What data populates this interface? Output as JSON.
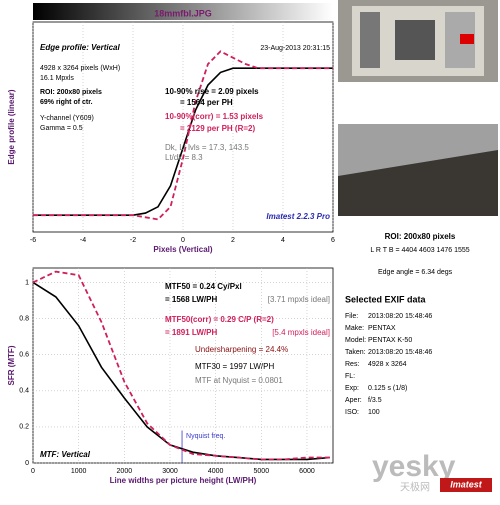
{
  "header": {
    "title": "18mmfbl.JPG"
  },
  "chart_data": [
    {
      "type": "line",
      "title": "Edge profile: Vertical",
      "date": "23-Aug-2013 20:31:15",
      "info": [
        "4928 x 3264 pixels (WxH)",
        "16.1 Mpxls",
        "ROI: 200x80 pixels",
        "69% right of ctr.",
        "Y-channel  (Y609)",
        "Gamma = 0.5"
      ],
      "annotations": [
        "10-90% rise = 2.09 pixels",
        "= 1564 per PH",
        "10-90%(corr) = 1.53 pixels",
        "= 2129 per PH  (R=2)",
        "Dk, Lt lvls = 17.3, 143.5",
        "Lt/dk = 8.3",
        "Imatest 2.2.3 Pro"
      ],
      "xlabel": "Pixels (Vertical)",
      "ylabel": "Edge profile (linear)",
      "x": [
        -6,
        -5.5,
        -5,
        -4.5,
        -4,
        -3.5,
        -3,
        -2.5,
        -2,
        -1.5,
        -1,
        -0.5,
        0,
        0.5,
        1,
        1.5,
        2,
        2.5,
        3,
        3.5,
        4,
        4.5,
        5,
        5.5,
        6
      ],
      "series": [
        {
          "color": "#000000",
          "values": [
            0.08,
            0.08,
            0.08,
            0.08,
            0.08,
            0.08,
            0.08,
            0.08,
            0.08,
            0.09,
            0.12,
            0.22,
            0.4,
            0.58,
            0.7,
            0.76,
            0.78,
            0.78,
            0.78,
            0.78,
            0.78,
            0.78,
            0.78,
            0.78,
            0.78
          ]
        },
        {
          "color": "#d0205a",
          "values": [
            0.08,
            0.08,
            0.08,
            0.08,
            0.08,
            0.08,
            0.08,
            0.08,
            0.08,
            0.07,
            0.06,
            0.12,
            0.35,
            0.62,
            0.8,
            0.86,
            0.83,
            0.8,
            0.78,
            0.78,
            0.78,
            0.78,
            0.78,
            0.78,
            0.78
          ]
        }
      ],
      "xlim": [
        -6,
        6
      ],
      "xticks": [
        -6,
        -4,
        -2,
        0,
        2,
        4,
        6
      ],
      "ylim": [
        0,
        1
      ],
      "grid": true
    },
    {
      "type": "line",
      "title": "MTF: Vertical",
      "annotations": [
        "MTF50 = 0.24 Cy/Pxl",
        "= 1568 LW/PH",
        "[3.71 mpxls ideal]",
        "MTF50(corr) = 0.29 C/P  (R=2)",
        "= 1891 LW/PH",
        "[5.4 mpxls ideal]",
        "Undersharpening = 24.4%",
        "MTF30 = 1997 LW/PH",
        "MTF at Nyquist = 0.0801"
      ],
      "nyquist": 3264,
      "nyquist_label": "Nyquist freq.",
      "xlabel": "Line widths per picture height (LW/PH)",
      "ylabel": "SFR (MTF)",
      "x": [
        0,
        500,
        1000,
        1500,
        2000,
        2500,
        3000,
        3500,
        4000,
        4500,
        5000,
        5500,
        6000,
        6500
      ],
      "series": [
        {
          "color": "#000000",
          "values": [
            1.0,
            0.92,
            0.76,
            0.53,
            0.36,
            0.2,
            0.1,
            0.06,
            0.04,
            0.03,
            0.02,
            0.02,
            0.02,
            0.03
          ]
        },
        {
          "color": "#d0205a",
          "values": [
            1.0,
            1.06,
            1.04,
            0.78,
            0.45,
            0.22,
            0.1,
            0.05,
            0.04,
            0.03,
            0.02,
            0.02,
            0.03,
            0.03
          ]
        }
      ],
      "xlim": [
        0,
        6570
      ],
      "xticks": [
        0,
        1000,
        2000,
        3000,
        4000,
        5000,
        6000
      ],
      "ylim": [
        0,
        1.08
      ],
      "yticks": [
        0,
        0.2,
        0.4,
        0.6,
        0.8,
        1
      ],
      "grid": true
    }
  ],
  "side": {
    "roi": "ROI: 200x80 pixels",
    "lrtb": "L R T B = 4404 4603  1476 1555",
    "edge_angle": "Edge angle = 6.34 degs",
    "exif_title": "Selected EXIF data",
    "exif": [
      [
        "File:",
        "2013:08:20 15:48:46"
      ],
      [
        "Make:",
        "PENTAX"
      ],
      [
        "Model:",
        "PENTAX K-50"
      ],
      [
        "Taken:",
        "2013:08:20 15:48:46"
      ],
      [
        "Res:",
        "4928 x 3264"
      ],
      [
        "FL:",
        ""
      ],
      [
        "Exp:",
        "0.125 s  (1/8)"
      ],
      [
        "Aper:",
        "f/3.5"
      ],
      [
        "ISO:",
        "100"
      ]
    ]
  },
  "watermark": {
    "site": "yesky",
    "cn": "天极网",
    "logo": "Imatest"
  }
}
